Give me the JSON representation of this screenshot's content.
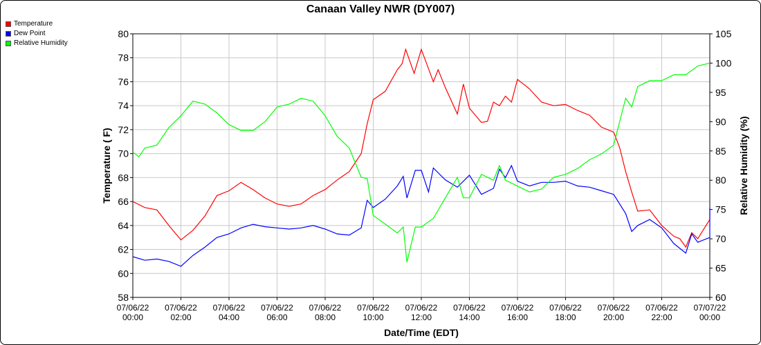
{
  "chart_data": {
    "type": "line",
    "title": "Canaan Valley NWR (DY007)",
    "xlabel": "Date/Time (EDT)",
    "ylabel": "Temperature ( F)",
    "y2label": "Relative Humidity (%)",
    "xlim": [
      0,
      24
    ],
    "ylim": [
      58,
      80
    ],
    "y2lim": [
      60,
      105
    ],
    "grid": true,
    "legend_position": "top-left",
    "x_ticks": [
      {
        "h": 0,
        "label": [
          "07/06/22",
          "00:00"
        ]
      },
      {
        "h": 2,
        "label": [
          "07/06/22",
          "02:00"
        ]
      },
      {
        "h": 4,
        "label": [
          "07/06/22",
          "04:00"
        ]
      },
      {
        "h": 6,
        "label": [
          "07/06/22",
          "06:00"
        ]
      },
      {
        "h": 8,
        "label": [
          "07/06/22",
          "08:00"
        ]
      },
      {
        "h": 10,
        "label": [
          "07/06/22",
          "10:00"
        ]
      },
      {
        "h": 12,
        "label": [
          "07/06/22",
          "12:00"
        ]
      },
      {
        "h": 14,
        "label": [
          "07/06/22",
          "14:00"
        ]
      },
      {
        "h": 16,
        "label": [
          "07/06/22",
          "16:00"
        ]
      },
      {
        "h": 18,
        "label": [
          "07/06/22",
          "18:00"
        ]
      },
      {
        "h": 20,
        "label": [
          "07/06/22",
          "20:00"
        ]
      },
      {
        "h": 22,
        "label": [
          "07/06/22",
          "22:00"
        ]
      },
      {
        "h": 24,
        "label": [
          "07/07/22",
          "00:00"
        ]
      }
    ],
    "y_ticks": [
      58,
      60,
      62,
      64,
      66,
      68,
      70,
      72,
      74,
      76,
      78,
      80
    ],
    "y2_ticks": [
      60,
      65,
      70,
      75,
      80,
      85,
      90,
      95,
      100,
      105
    ],
    "series": [
      {
        "name": "Temperature",
        "color": "#ff0000",
        "axis": "left",
        "points": [
          [
            0,
            66.0
          ],
          [
            0.5,
            65.5
          ],
          [
            1,
            65.3
          ],
          [
            1.5,
            64.0
          ],
          [
            2,
            62.8
          ],
          [
            2.5,
            63.6
          ],
          [
            3,
            64.8
          ],
          [
            3.5,
            66.5
          ],
          [
            4,
            66.9
          ],
          [
            4.5,
            67.6
          ],
          [
            5,
            67.0
          ],
          [
            5.5,
            66.3
          ],
          [
            6,
            65.8
          ],
          [
            6.5,
            65.6
          ],
          [
            7,
            65.8
          ],
          [
            7.5,
            66.5
          ],
          [
            8,
            67.0
          ],
          [
            8.5,
            67.8
          ],
          [
            9,
            68.5
          ],
          [
            9.5,
            70.0
          ],
          [
            9.75,
            72.5
          ],
          [
            10,
            74.5
          ],
          [
            10.5,
            75.2
          ],
          [
            11,
            77.0
          ],
          [
            11.2,
            77.5
          ],
          [
            11.35,
            78.7
          ],
          [
            11.7,
            76.7
          ],
          [
            12.0,
            78.7
          ],
          [
            12.5,
            76.0
          ],
          [
            12.7,
            77.0
          ],
          [
            13,
            75.5
          ],
          [
            13.5,
            73.3
          ],
          [
            13.75,
            75.8
          ],
          [
            14,
            73.8
          ],
          [
            14.5,
            72.6
          ],
          [
            14.75,
            72.7
          ],
          [
            15,
            74.3
          ],
          [
            15.25,
            74.0
          ],
          [
            15.5,
            74.8
          ],
          [
            15.75,
            74.3
          ],
          [
            16,
            76.2
          ],
          [
            16.5,
            75.4
          ],
          [
            17,
            74.3
          ],
          [
            17.5,
            74.0
          ],
          [
            18,
            74.1
          ],
          [
            18.5,
            73.6
          ],
          [
            19,
            73.2
          ],
          [
            19.5,
            72.2
          ],
          [
            20,
            71.8
          ],
          [
            20.25,
            70.5
          ],
          [
            20.5,
            68.5
          ],
          [
            20.75,
            66.8
          ],
          [
            21,
            65.2
          ],
          [
            21.5,
            65.3
          ],
          [
            22,
            64.0
          ],
          [
            22.5,
            63.1
          ],
          [
            22.75,
            62.9
          ],
          [
            23,
            62.2
          ],
          [
            23.25,
            63.4
          ],
          [
            23.5,
            62.9
          ],
          [
            24,
            64.5
          ],
          [
            24,
            65.5
          ]
        ]
      },
      {
        "name": "Dew Point",
        "color": "#0000ff",
        "axis": "left",
        "points": [
          [
            0,
            61.4
          ],
          [
            0.5,
            61.1
          ],
          [
            1,
            61.2
          ],
          [
            1.5,
            61.0
          ],
          [
            2,
            60.6
          ],
          [
            2.5,
            61.5
          ],
          [
            3,
            62.2
          ],
          [
            3.5,
            63.0
          ],
          [
            4,
            63.3
          ],
          [
            4.5,
            63.8
          ],
          [
            5,
            64.1
          ],
          [
            5.5,
            63.9
          ],
          [
            6,
            63.8
          ],
          [
            6.5,
            63.7
          ],
          [
            7,
            63.8
          ],
          [
            7.5,
            64.0
          ],
          [
            8,
            63.7
          ],
          [
            8.5,
            63.3
          ],
          [
            9,
            63.2
          ],
          [
            9.5,
            63.8
          ],
          [
            9.75,
            66.1
          ],
          [
            10,
            65.5
          ],
          [
            10.5,
            66.2
          ],
          [
            11,
            67.3
          ],
          [
            11.25,
            68.1
          ],
          [
            11.4,
            66.3
          ],
          [
            11.75,
            68.6
          ],
          [
            12,
            68.6
          ],
          [
            12.3,
            66.8
          ],
          [
            12.5,
            68.8
          ],
          [
            13,
            67.8
          ],
          [
            13.5,
            67.2
          ],
          [
            14,
            68.2
          ],
          [
            14.5,
            66.6
          ],
          [
            15,
            67.1
          ],
          [
            15.25,
            68.7
          ],
          [
            15.5,
            68.0
          ],
          [
            15.75,
            69.0
          ],
          [
            16,
            67.7
          ],
          [
            16.5,
            67.3
          ],
          [
            17,
            67.6
          ],
          [
            17.5,
            67.6
          ],
          [
            18,
            67.7
          ],
          [
            18.5,
            67.3
          ],
          [
            19,
            67.2
          ],
          [
            19.5,
            66.9
          ],
          [
            20,
            66.6
          ],
          [
            20.5,
            65.0
          ],
          [
            20.75,
            63.5
          ],
          [
            21,
            64.0
          ],
          [
            21.5,
            64.5
          ],
          [
            22,
            63.8
          ],
          [
            22.5,
            62.5
          ],
          [
            23,
            61.7
          ],
          [
            23.25,
            63.3
          ],
          [
            23.5,
            62.6
          ],
          [
            24,
            63.0
          ],
          [
            24,
            65.5
          ]
        ]
      },
      {
        "name": "Relative Humidity",
        "color": "#00ff00",
        "axis": "right",
        "points": [
          [
            0,
            84.8
          ],
          [
            0.25,
            84.0
          ],
          [
            0.5,
            85.5
          ],
          [
            1,
            86.0
          ],
          [
            1.5,
            89.0
          ],
          [
            2,
            91.0
          ],
          [
            2.5,
            93.5
          ],
          [
            3,
            93.0
          ],
          [
            3.5,
            91.5
          ],
          [
            4,
            89.5
          ],
          [
            4.5,
            88.5
          ],
          [
            5,
            88.5
          ],
          [
            5.5,
            90.0
          ],
          [
            6,
            92.5
          ],
          [
            6.5,
            93.0
          ],
          [
            7,
            94.0
          ],
          [
            7.5,
            93.5
          ],
          [
            8,
            91.0
          ],
          [
            8.5,
            87.5
          ],
          [
            9,
            85.5
          ],
          [
            9.5,
            80.5
          ],
          [
            9.75,
            80.3
          ],
          [
            10,
            74.0
          ],
          [
            10.5,
            72.5
          ],
          [
            11,
            71.0
          ],
          [
            11.25,
            72.0
          ],
          [
            11.4,
            66.0
          ],
          [
            11.75,
            72.0
          ],
          [
            12,
            72.0
          ],
          [
            12.5,
            73.5
          ],
          [
            13,
            77.0
          ],
          [
            13.5,
            80.5
          ],
          [
            13.75,
            77.0
          ],
          [
            14,
            77.0
          ],
          [
            14.5,
            81.0
          ],
          [
            15,
            80.0
          ],
          [
            15.25,
            82.5
          ],
          [
            15.5,
            80.0
          ],
          [
            16,
            79.0
          ],
          [
            16.5,
            78.0
          ],
          [
            17,
            78.5
          ],
          [
            17.5,
            80.5
          ],
          [
            18,
            81.0
          ],
          [
            18.5,
            82.0
          ],
          [
            19,
            83.5
          ],
          [
            19.5,
            84.5
          ],
          [
            20,
            86.0
          ],
          [
            20.5,
            94.0
          ],
          [
            20.75,
            92.5
          ],
          [
            21,
            96.0
          ],
          [
            21.5,
            97.0
          ],
          [
            22,
            97.0
          ],
          [
            22.5,
            98.0
          ],
          [
            23,
            98.0
          ],
          [
            23.5,
            99.5
          ],
          [
            24,
            100.0
          ]
        ]
      }
    ]
  }
}
